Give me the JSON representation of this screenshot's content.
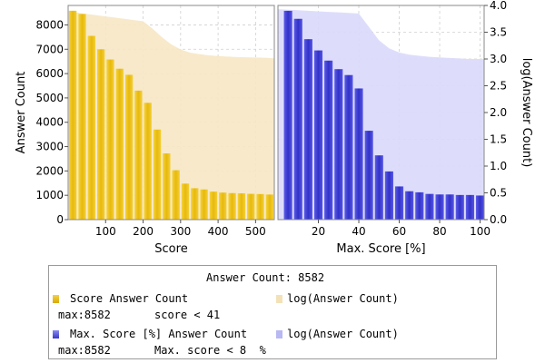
{
  "chart_data": [
    {
      "type": "bar",
      "xlabel": "Score",
      "ylabel": "Answer Count",
      "xlim": [
        0,
        550
      ],
      "ylim": [
        0,
        8800
      ],
      "x_ticks": [
        100,
        200,
        300,
        400,
        500
      ],
      "y_ticks": [
        0,
        1000,
        2000,
        3000,
        4000,
        5000,
        6000,
        7000,
        8000
      ],
      "bar_color": "#f0c419",
      "area_color": "#f6e7c4",
      "bin_width": 25,
      "bars": [
        {
          "x": 12.5,
          "y": 8582
        },
        {
          "x": 37.5,
          "y": 8450
        },
        {
          "x": 62.5,
          "y": 7550
        },
        {
          "x": 87.5,
          "y": 7000
        },
        {
          "x": 112.5,
          "y": 6580
        },
        {
          "x": 137.5,
          "y": 6200
        },
        {
          "x": 162.5,
          "y": 5950
        },
        {
          "x": 187.5,
          "y": 5300
        },
        {
          "x": 212.5,
          "y": 4800
        },
        {
          "x": 237.5,
          "y": 3700
        },
        {
          "x": 262.5,
          "y": 2720
        },
        {
          "x": 287.5,
          "y": 2030
        },
        {
          "x": 312.5,
          "y": 1480
        },
        {
          "x": 337.5,
          "y": 1290
        },
        {
          "x": 362.5,
          "y": 1240
        },
        {
          "x": 387.5,
          "y": 1150
        },
        {
          "x": 412.5,
          "y": 1110
        },
        {
          "x": 437.5,
          "y": 1090
        },
        {
          "x": 462.5,
          "y": 1080
        },
        {
          "x": 487.5,
          "y": 1060
        },
        {
          "x": 512.5,
          "y": 1050
        },
        {
          "x": 537.5,
          "y": 1030
        }
      ],
      "area": {
        "name": "log(Answer Count)",
        "x": [
          0,
          25,
          50,
          75,
          100,
          125,
          150,
          175,
          200,
          225,
          250,
          275,
          300,
          325,
          350,
          375,
          400,
          425,
          450,
          475,
          500,
          525,
          550
        ],
        "y": [
          8582,
          8500,
          8450,
          8400,
          8350,
          8300,
          8250,
          8200,
          8150,
          7850,
          7500,
          7200,
          6990,
          6860,
          6800,
          6750,
          6720,
          6700,
          6680,
          6670,
          6660,
          6650,
          6630
        ]
      }
    },
    {
      "type": "bar",
      "xlabel": "Max. Score [%]",
      "ylabel_right": "log(Answer Count)",
      "xlim": [
        0,
        102
      ],
      "ylim": [
        0,
        4.0
      ],
      "x_ticks": [
        20,
        40,
        60,
        80,
        100
      ],
      "y_ticks": [
        0.0,
        0.5,
        1.0,
        1.5,
        2.0,
        2.5,
        3.0,
        3.5,
        4.0
      ],
      "bar_color": "#4040e0",
      "area_color": "#d9d9fb",
      "bin_width": 5,
      "bars": [
        {
          "x": 5,
          "y": 3.9
        },
        {
          "x": 10,
          "y": 3.75
        },
        {
          "x": 15,
          "y": 3.37
        },
        {
          "x": 20,
          "y": 3.16
        },
        {
          "x": 25,
          "y": 2.97
        },
        {
          "x": 30,
          "y": 2.81
        },
        {
          "x": 35,
          "y": 2.7
        },
        {
          "x": 40,
          "y": 2.45
        },
        {
          "x": 45,
          "y": 1.66
        },
        {
          "x": 50,
          "y": 1.2
        },
        {
          "x": 55,
          "y": 0.9
        },
        {
          "x": 60,
          "y": 0.62
        },
        {
          "x": 65,
          "y": 0.53
        },
        {
          "x": 70,
          "y": 0.51
        },
        {
          "x": 75,
          "y": 0.48
        },
        {
          "x": 80,
          "y": 0.47
        },
        {
          "x": 85,
          "y": 0.47
        },
        {
          "x": 90,
          "y": 0.46
        },
        {
          "x": 95,
          "y": 0.46
        },
        {
          "x": 100,
          "y": 0.45
        }
      ],
      "area": {
        "name": "log(Answer Count)",
        "x": [
          0,
          5,
          10,
          15,
          20,
          25,
          30,
          35,
          40,
          45,
          50,
          55,
          60,
          65,
          70,
          75,
          80,
          85,
          90,
          95,
          100,
          102
        ],
        "y": [
          3.93,
          3.92,
          3.91,
          3.9,
          3.89,
          3.88,
          3.87,
          3.86,
          3.85,
          3.6,
          3.35,
          3.2,
          3.12,
          3.08,
          3.06,
          3.04,
          3.03,
          3.02,
          3.01,
          3.0,
          3.0,
          3.0
        ]
      }
    }
  ],
  "legend": {
    "title": "Answer Count: 8582",
    "rows": [
      {
        "label": "Score Answer Count",
        "area_label": "log(Answer Count)",
        "max_text": "max:8582",
        "cond_text": "score < 41"
      },
      {
        "label": "Max. Score [%] Answer Count",
        "area_label": "log(Answer Count)",
        "max_text": "max:8582",
        "cond_text": "Max. score < 8  %"
      }
    ]
  }
}
